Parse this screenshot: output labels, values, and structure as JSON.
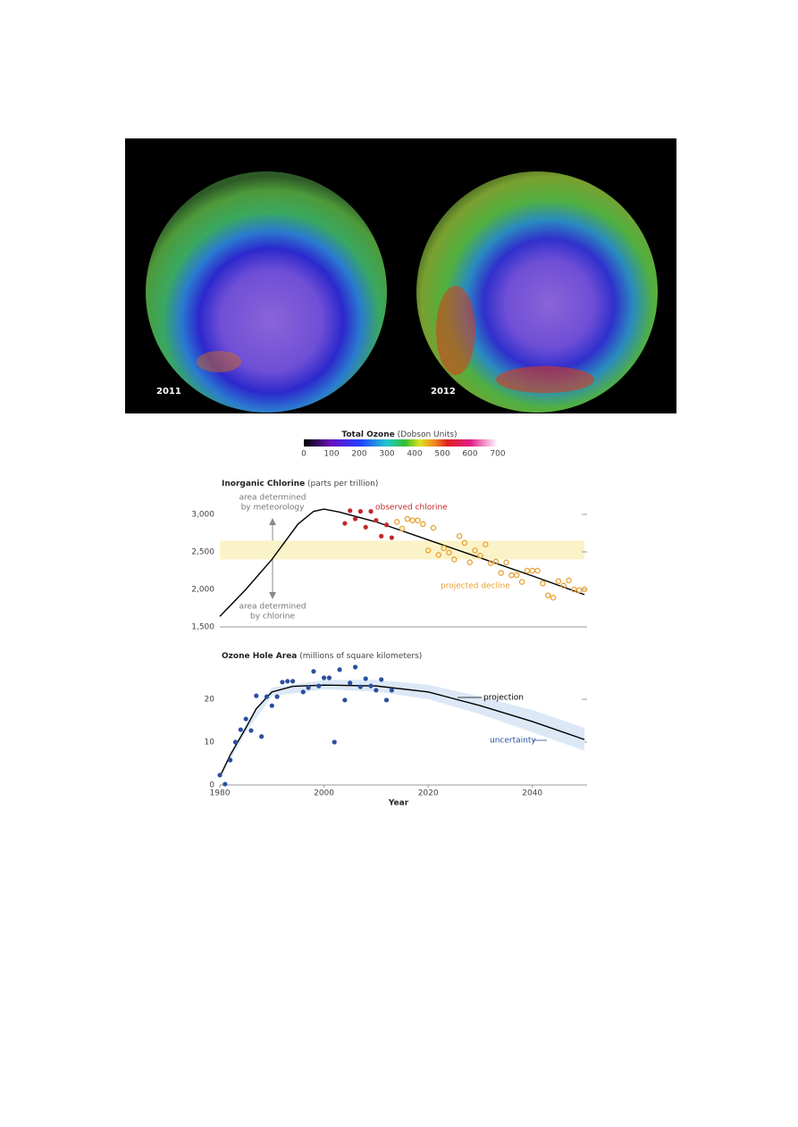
{
  "maps": {
    "labels": [
      "2011",
      "2012"
    ],
    "colorbar": {
      "title": "Total Ozone",
      "unit": "(Dobson Units)",
      "lim": [
        0,
        700
      ],
      "ticks": [
        0,
        100,
        200,
        300,
        400,
        500,
        600,
        700
      ]
    }
  },
  "chart_data": [
    {
      "type": "line",
      "title": "Inorganic Chlorine",
      "title_unit": "(parts per trillion)",
      "xlim": [
        1980,
        2050
      ],
      "ylim": [
        1500,
        3200
      ],
      "yticks": [
        {
          "value": 1500,
          "label": "1,500"
        },
        {
          "value": 2000,
          "label": "2,000"
        },
        {
          "value": 2500,
          "label": "2,500"
        },
        {
          "value": 3000,
          "label": "3,000"
        }
      ],
      "band": {
        "range": [
          2400,
          2650
        ],
        "color": "#fbf3c8"
      },
      "annotations": [
        {
          "lines": [
            "area determined",
            "by meteorology"
          ]
        },
        {
          "lines": [
            "area determined",
            "by chlorine"
          ]
        }
      ],
      "series": [
        {
          "marker": "line",
          "color": "#000000",
          "x": [
            1980,
            1985,
            1990,
            1995,
            1998,
            2000,
            2003,
            2010,
            2020,
            2030,
            2040,
            2050
          ],
          "values": [
            1640,
            2000,
            2400,
            2870,
            3040,
            3070,
            3030,
            2900,
            2660,
            2420,
            2180,
            1930
          ]
        },
        {
          "name": "observed chlorine",
          "marker": "dot",
          "color": "#c0282a",
          "x": [
            2004,
            2005,
            2006,
            2007,
            2008,
            2009,
            2010,
            2011,
            2012,
            2013
          ],
          "values": [
            2880,
            3050,
            2940,
            3040,
            2830,
            3040,
            2920,
            2710,
            2860,
            2690
          ]
        },
        {
          "name": "projected decline",
          "marker": "circle",
          "color": "#e8a030",
          "x": [
            2014,
            2015,
            2016,
            2017,
            2018,
            2019,
            2020,
            2021,
            2022,
            2023,
            2024,
            2025,
            2026,
            2027,
            2028,
            2029,
            2030,
            2031,
            2032,
            2033,
            2034,
            2035,
            2036,
            2037,
            2038,
            2039,
            2040,
            2041,
            2042,
            2043,
            2044,
            2045,
            2046,
            2047,
            2048,
            2049,
            2050
          ],
          "values": [
            2900,
            2810,
            2940,
            2920,
            2920,
            2870,
            2520,
            2820,
            2460,
            2550,
            2490,
            2400,
            2710,
            2620,
            2360,
            2520,
            2450,
            2600,
            2350,
            2370,
            2220,
            2360,
            2190,
            2190,
            2100,
            2250,
            2250,
            2250,
            2080,
            1920,
            1890,
            2110,
            2050,
            2120,
            2000,
            1990,
            2000
          ]
        }
      ]
    },
    {
      "type": "line",
      "title": "Ozone Hole Area",
      "title_unit": "(millions of square kilometers)",
      "xlabel": "Year",
      "xlim": [
        1980,
        2050
      ],
      "ylim": [
        0,
        28
      ],
      "xticks": [
        1980,
        2000,
        2020,
        2040
      ],
      "yticks": [
        0,
        10,
        20
      ],
      "series": [
        {
          "marker": "dot",
          "color": "#2a4fa0",
          "x": [
            1980,
            1981,
            1982,
            1983,
            1984,
            1985,
            1986,
            1987,
            1988,
            1989,
            1990,
            1991,
            1992,
            1993,
            1994,
            1996,
            1997,
            1998,
            1999,
            2000,
            2001,
            2002,
            2003,
            2004,
            2005,
            2006,
            2007,
            2008,
            2009,
            2010,
            2011,
            2012,
            2013
          ],
          "values": [
            2.3,
            0.2,
            5.8,
            10,
            12.9,
            15.4,
            12.7,
            20.8,
            11.3,
            20.6,
            18.5,
            20.6,
            24,
            24.2,
            24.2,
            21.7,
            22.7,
            26.5,
            23.1,
            25,
            25,
            10,
            26.9,
            19.8,
            23.8,
            27.5,
            22.9,
            24.8,
            23.1,
            22.1,
            24.6,
            19.8,
            22.1
          ]
        },
        {
          "name": "projection",
          "marker": "line",
          "color": "#000000",
          "x": [
            1980,
            1982,
            1985,
            1987,
            1990,
            1994,
            2000,
            2010,
            2020,
            2030,
            2040,
            2050
          ],
          "values": [
            1.9,
            7,
            13.3,
            17.8,
            21.7,
            23,
            23.3,
            23.1,
            21.7,
            18.5,
            14.8,
            10.6
          ]
        },
        {
          "name": "uncertainty",
          "marker": "band",
          "color": "#dce8f6",
          "x": [
            1980,
            1985,
            1990,
            2000,
            2010,
            2020,
            2030,
            2040,
            2050
          ],
          "lower": [
            1.5,
            12.3,
            20.7,
            22.3,
            21.8,
            20,
            16.5,
            12.3,
            8
          ],
          "upper": [
            2.5,
            14.3,
            22.7,
            24.5,
            24.5,
            23.4,
            20.6,
            17.5,
            13.3
          ]
        }
      ]
    }
  ]
}
